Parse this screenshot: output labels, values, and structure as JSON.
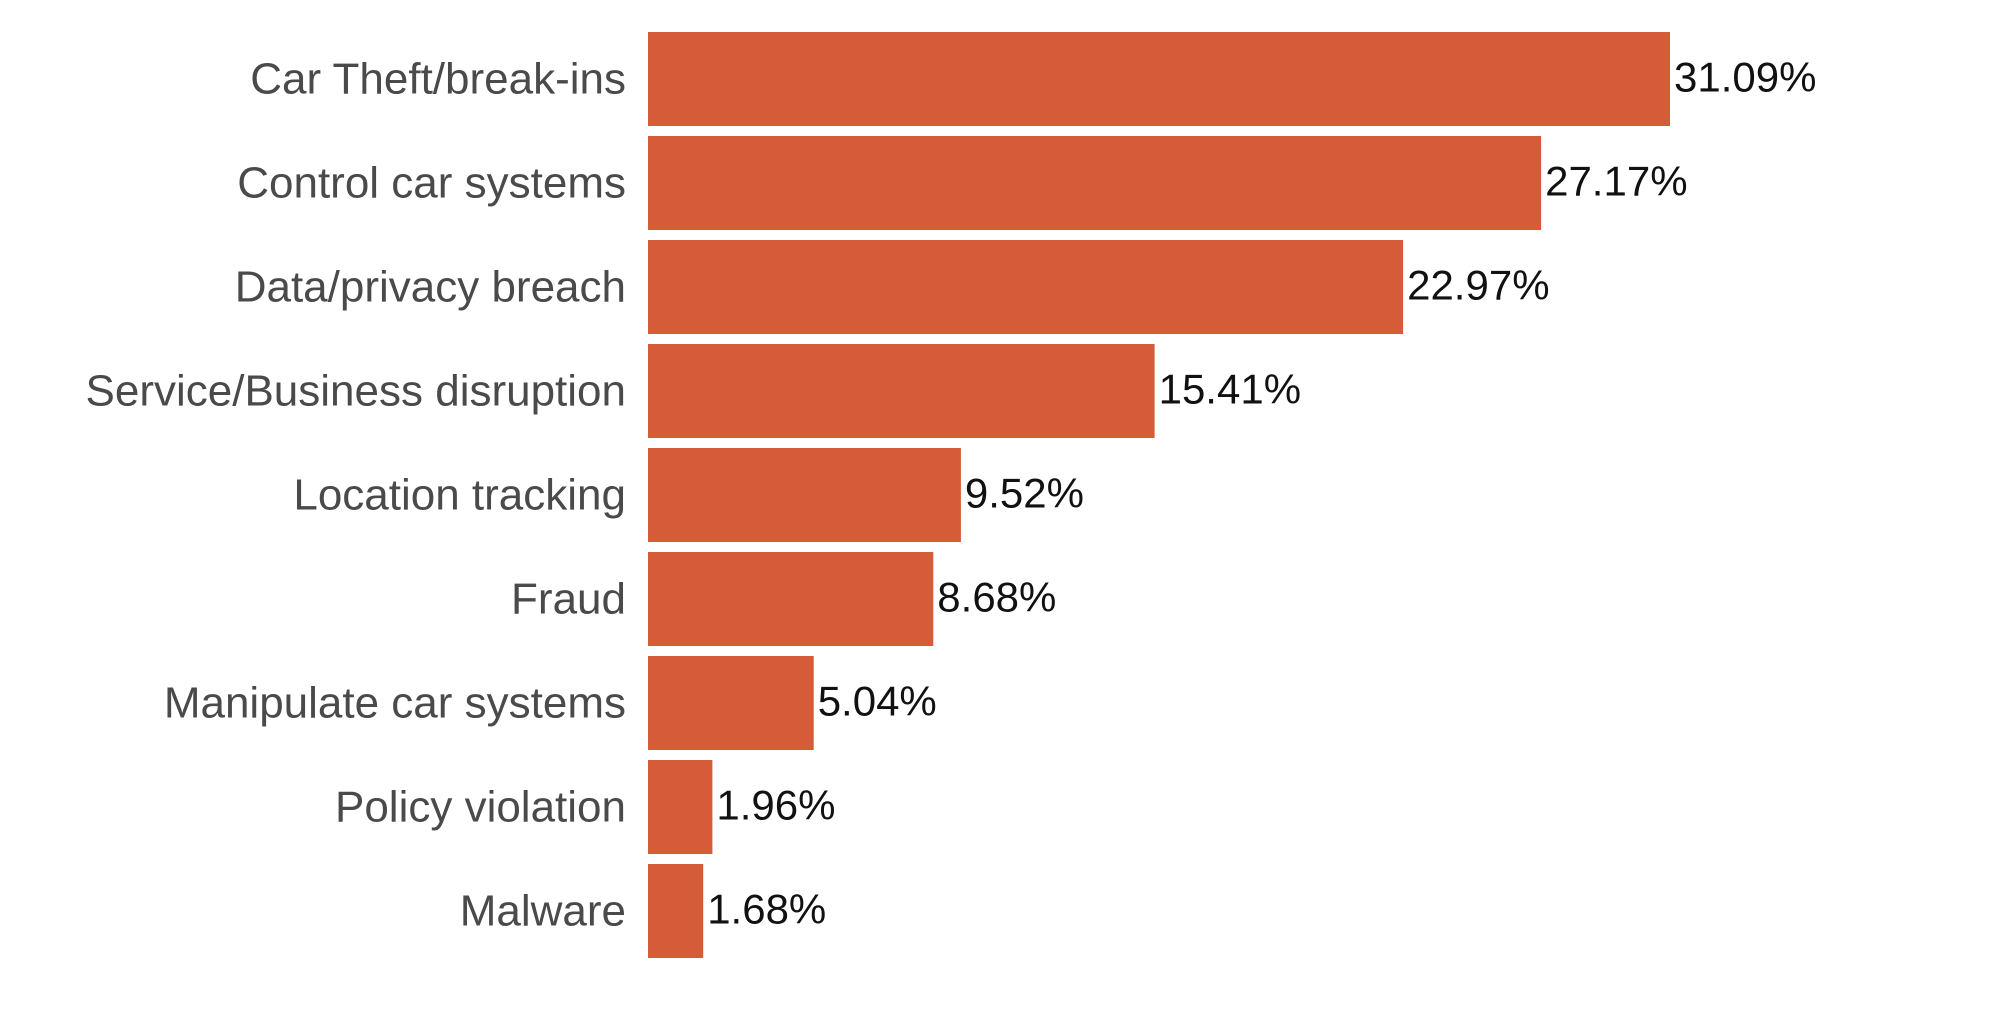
{
  "chart_data": {
    "type": "bar",
    "orientation": "horizontal",
    "categories": [
      "Car Theft/break-ins",
      "Control car systems",
      "Data/privacy breach",
      "Service/Business disruption",
      "Location tracking",
      "Fraud",
      "Manipulate car systems",
      "Policy violation",
      "Malware"
    ],
    "values": [
      31.09,
      27.17,
      22.97,
      15.41,
      9.52,
      8.68,
      5.04,
      1.96,
      1.68
    ],
    "value_labels": [
      "31.09%",
      "27.17%",
      "22.97%",
      "15.41%",
      "9.52%",
      "8.68%",
      "5.04%",
      "1.96%",
      "1.68%"
    ],
    "title": "",
    "xlabel": "",
    "ylabel": "",
    "grid": false,
    "bar_color": "#d65b38"
  }
}
